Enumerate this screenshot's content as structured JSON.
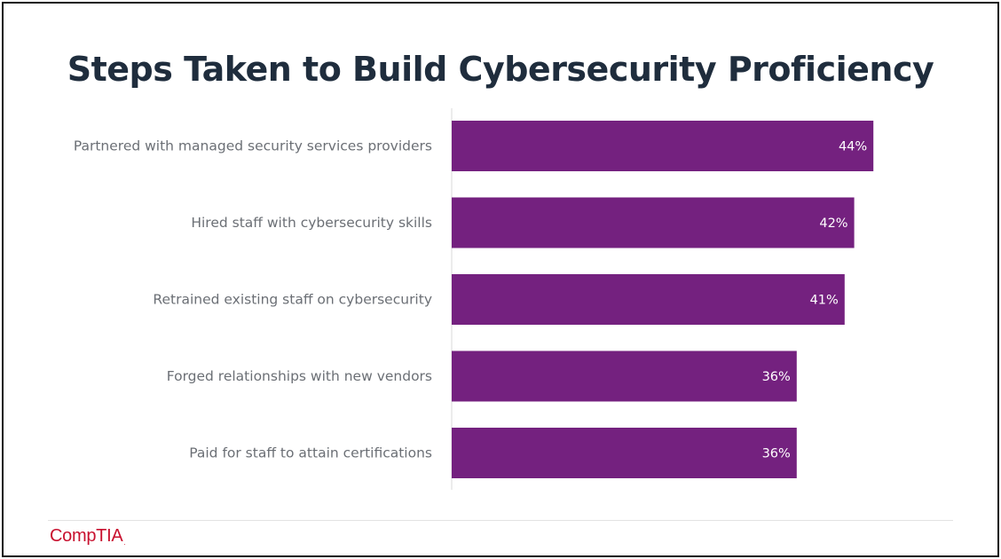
{
  "slide": {
    "title": "Steps Taken to Build Cybersecurity Proficiency",
    "logo_text": "CompTIA",
    "logo_mark": ".",
    "colors": {
      "bar": "#74217f",
      "title": "#1f2d3d",
      "label": "#6b6f75",
      "logo": "#c8102e"
    }
  },
  "chart_data": {
    "type": "bar",
    "orientation": "horizontal",
    "title": "Steps Taken to Build Cybersecurity Proficiency",
    "categories": [
      "Partnered with managed security services providers",
      "Hired staff with cybersecurity skills",
      "Retrained existing staff on cybersecurity",
      "Forged relationships with new vendors",
      "Paid for staff to attain certifications"
    ],
    "values": [
      44,
      42,
      41,
      36,
      36
    ],
    "value_labels": [
      "44%",
      "42%",
      "41%",
      "36%",
      "36%"
    ],
    "unit": "%",
    "xlim": [
      0,
      50
    ],
    "grid": false,
    "legend": "none"
  }
}
